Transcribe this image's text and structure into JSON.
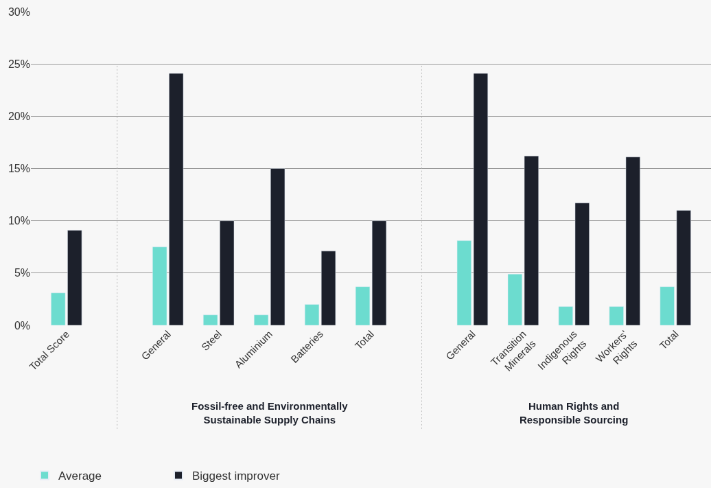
{
  "chart_data": {
    "type": "bar",
    "categories": [
      "Total Score",
      null,
      "General",
      "Steel",
      "Aluminium",
      "Batteries",
      "Total",
      null,
      "General",
      "Transition\nMinerals",
      "Indigenous\nRights",
      "Workers'\nRights",
      "Total"
    ],
    "series": [
      {
        "name": "Average",
        "color": "#6cdccf",
        "values": [
          3.1,
          null,
          7.5,
          1.0,
          1.0,
          2.0,
          3.7,
          null,
          8.1,
          4.9,
          1.8,
          1.8,
          3.7
        ]
      },
      {
        "name": "Biggest improver",
        "color": "#1c202b",
        "values": [
          9.1,
          null,
          24.1,
          10.0,
          15.0,
          7.1,
          10.0,
          null,
          24.1,
          16.2,
          11.7,
          16.1,
          11.0
        ]
      }
    ],
    "ylim": [
      0,
      30
    ],
    "yticks": [
      {
        "value": 0,
        "label": "0%"
      },
      {
        "value": 5,
        "label": "5%"
      },
      {
        "value": 10,
        "label": "10%"
      },
      {
        "value": 15,
        "label": "15%"
      },
      {
        "value": 20,
        "label": "20%"
      },
      {
        "value": 25,
        "label": "25%"
      },
      {
        "value": 30,
        "label": "30%"
      }
    ],
    "grid": "y",
    "legend": "bottom left",
    "annotations": [
      "Fossil-free and Environmentally\nSustainable Supply Chains",
      "Human Rights and\nResponsible Sourcing"
    ]
  }
}
